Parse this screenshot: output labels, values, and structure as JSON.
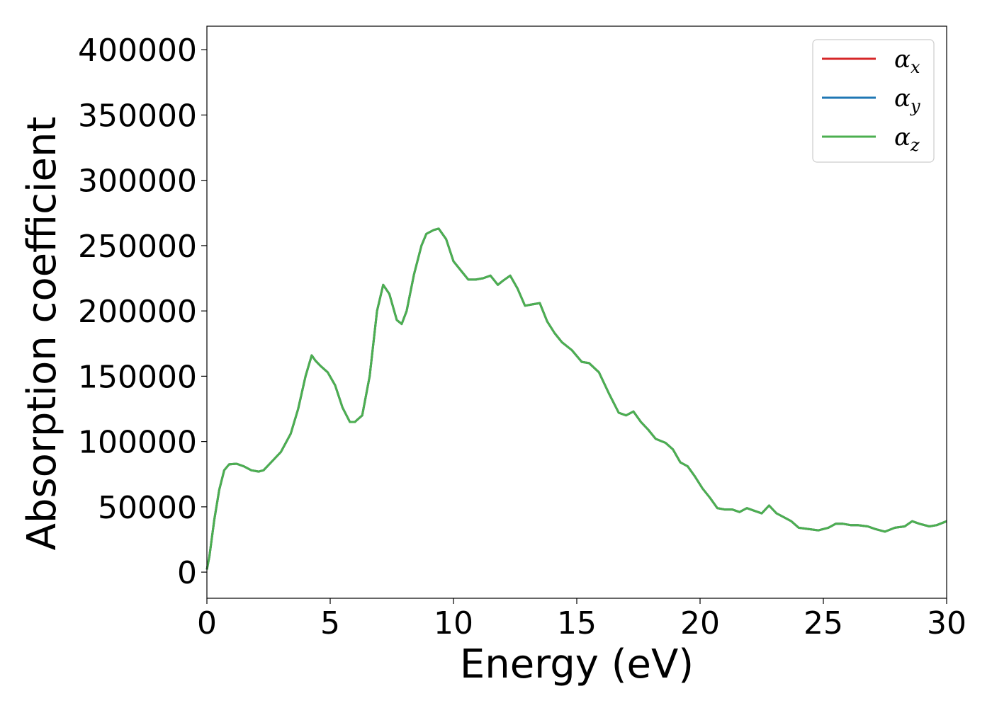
{
  "chart_data": {
    "type": "line",
    "title": "",
    "xlabel": "Energy (eV)",
    "ylabel": "Absorption coefficient",
    "xlim": [
      0,
      30
    ],
    "ylim": [
      -20000,
      418000
    ],
    "xticks": [
      0,
      5,
      10,
      15,
      20,
      25,
      30
    ],
    "yticks": [
      0,
      50000,
      100000,
      150000,
      200000,
      250000,
      300000,
      350000,
      400000
    ],
    "grid": false,
    "legend_position": "top-right",
    "legend": [
      {
        "symbol": "α",
        "sub": "x",
        "color": "#d62728"
      },
      {
        "symbol": "α",
        "sub": "y",
        "color": "#1f77b4"
      },
      {
        "symbol": "α",
        "sub": "z",
        "color": "#4caf50"
      }
    ],
    "x": [
      0,
      0.1,
      0.3,
      0.5,
      0.7,
      0.9,
      1.2,
      1.5,
      1.8,
      2.1,
      2.3,
      2.6,
      3.0,
      3.4,
      3.7,
      4.0,
      4.25,
      4.4,
      4.6,
      4.9,
      5.2,
      5.5,
      5.8,
      6.0,
      6.3,
      6.6,
      6.9,
      7.15,
      7.4,
      7.7,
      7.9,
      8.1,
      8.4,
      8.7,
      8.9,
      9.2,
      9.4,
      9.7,
      10.0,
      10.3,
      10.6,
      10.9,
      11.2,
      11.5,
      11.8,
      12.0,
      12.3,
      12.6,
      12.9,
      13.2,
      13.5,
      13.8,
      14.1,
      14.4,
      14.8,
      15.2,
      15.5,
      15.9,
      16.3,
      16.7,
      17.0,
      17.3,
      17.6,
      17.9,
      18.2,
      18.6,
      18.9,
      19.2,
      19.5,
      19.8,
      20.1,
      20.4,
      20.7,
      21.0,
      21.3,
      21.6,
      21.9,
      22.2,
      22.5,
      22.8,
      23.1,
      23.4,
      23.7,
      24.0,
      24.4,
      24.8,
      25.2,
      25.5,
      25.8,
      26.1,
      26.4,
      26.8,
      27.1,
      27.5,
      27.9,
      28.3,
      28.6,
      28.9,
      29.3,
      29.6,
      30.0
    ],
    "series": [
      {
        "values": [
          2000,
          12000,
          40000,
          63000,
          78000,
          82500,
          83000,
          81000,
          78000,
          77000,
          78000,
          84000,
          92000,
          106000,
          125000,
          150000,
          166000,
          162000,
          158000,
          153000,
          143000,
          126000,
          115000,
          115000,
          120000,
          150000,
          200000,
          220000,
          213000,
          193000,
          190000,
          200000,
          228000,
          250000,
          259000,
          262000,
          263000,
          255000,
          238000,
          231000,
          224000,
          224000,
          225000,
          227000,
          220000,
          223000,
          227000,
          217000,
          204000,
          205000,
          206000,
          192000,
          183000,
          176000,
          170000,
          161000,
          160000,
          153000,
          137000,
          122000,
          120000,
          123000,
          115000,
          109000,
          102000,
          99000,
          94000,
          84000,
          81000,
          73000,
          64000,
          57000,
          49000,
          48000,
          48000,
          46000,
          49000,
          47000,
          45000,
          51000,
          45000,
          42000,
          39000,
          34000,
          33000,
          32000,
          34000,
          37000,
          37000,
          36000,
          36000,
          35000,
          33000,
          31000,
          34000,
          35000,
          39000,
          37000,
          35000,
          36000,
          39000
        ]
      }
    ]
  }
}
